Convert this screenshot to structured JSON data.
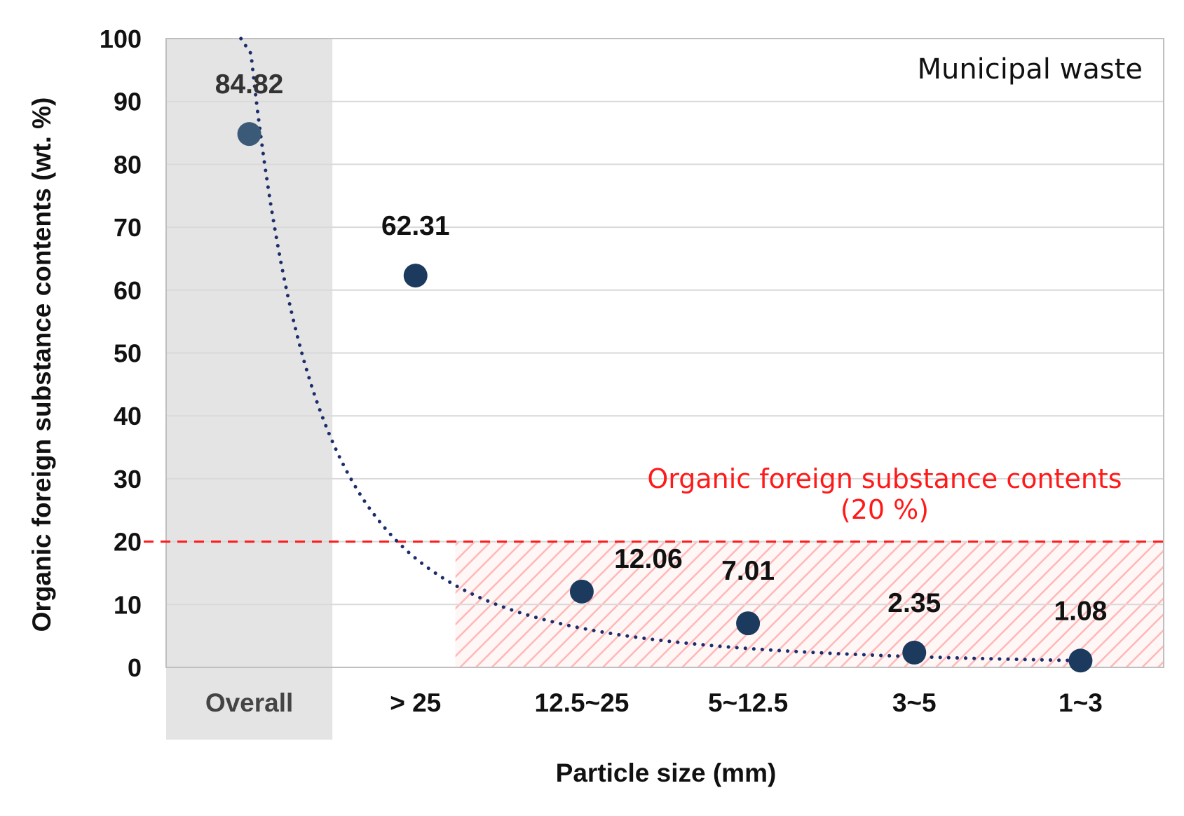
{
  "chart_data": {
    "type": "scatter",
    "title": "Municipal waste",
    "xlabel": "Particle size (mm)",
    "ylabel": "Organic foreign substance contents (wt. %)",
    "categories": [
      "Overall",
      "> 25",
      "12.5~25",
      "5~12.5",
      "3~5",
      "1~3"
    ],
    "values": [
      84.82,
      62.31,
      12.06,
      7.01,
      2.35,
      1.08
    ],
    "value_labels": [
      "84.82",
      "62.31",
      "12.06",
      "7.01",
      "2.35",
      "1.08"
    ],
    "ylim": [
      0,
      100
    ],
    "yticks": [
      0,
      10,
      20,
      30,
      40,
      50,
      60,
      70,
      80,
      90,
      100
    ],
    "grid": true,
    "highlighted_category": "Overall",
    "trendline": {
      "style": "dotted",
      "kind": "power"
    },
    "threshold": {
      "value": 20,
      "label_line1": "Organic foreign substance contents",
      "label_line2": "(20 %)",
      "color": "#ff1a1a",
      "hatched_region": "below threshold, from 12.5~25 to 1~3"
    },
    "colors": {
      "marker": "#1b3a5e",
      "marker_overall": "#3a5a78",
      "trend": "#1b2d6b",
      "threshold": "#ff1a1a",
      "overall_band": "#e4e4e4",
      "grid": "#d9d9d9",
      "hatch": "#ffb8b8"
    }
  }
}
